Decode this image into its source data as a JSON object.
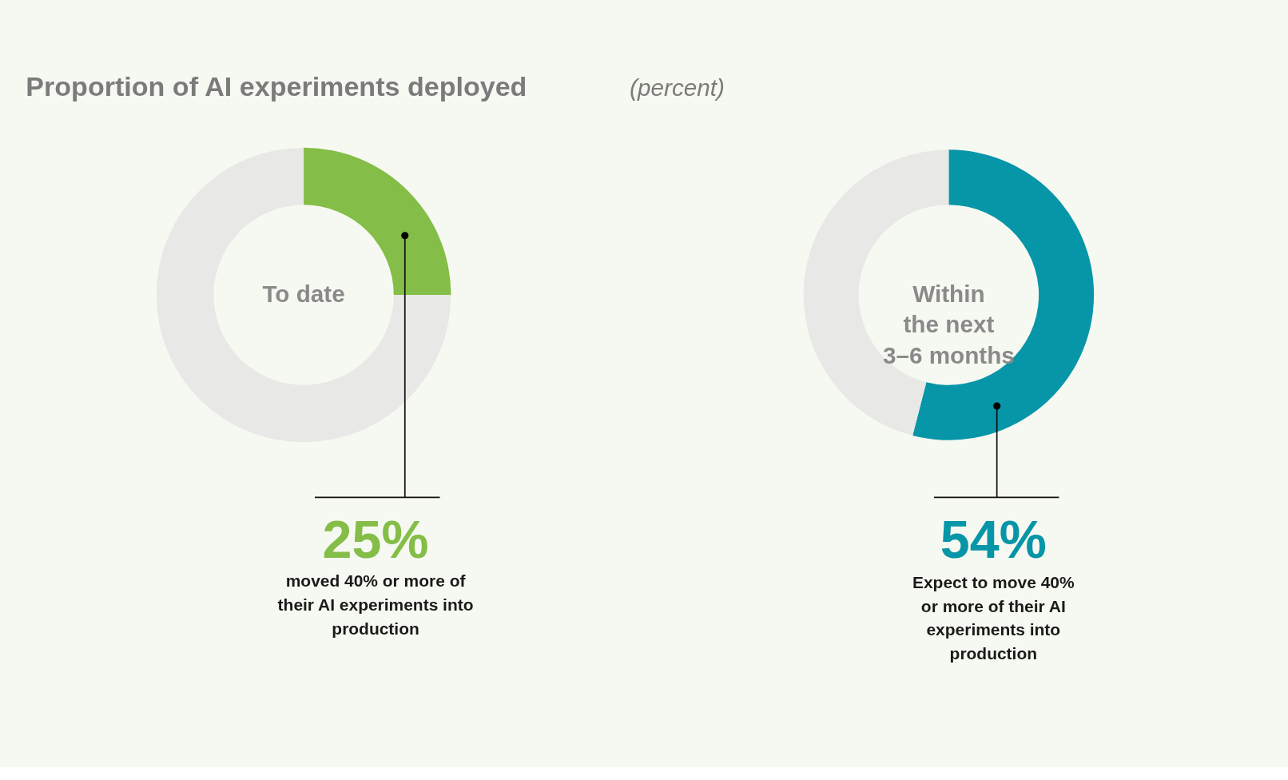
{
  "chart_data": [
    {
      "type": "donut",
      "title": "Proportion of AI experiments deployed",
      "subtitle": "(percent)",
      "categories": [
        null,
        null
      ],
      "values": [
        25,
        75
      ],
      "colors": [
        "#84bd47",
        "#e8e8e6"
      ],
      "value_labels": [
        "25%",
        null
      ],
      "annotations": [
        "To date",
        "moved 40% or more of\ntheir AI experiments into\nproduction"
      ]
    },
    {
      "type": "donut",
      "categories": [
        null,
        null
      ],
      "values": [
        54,
        46
      ],
      "colors": [
        "#0795a8",
        "#e8e8e6"
      ],
      "value_labels": [
        "54%",
        null
      ],
      "annotations": [
        "Within\nthe next\n3–6 months",
        "Expect to move 40%\nor more of their AI\nexperiments into\nproduction"
      ]
    }
  ]
}
